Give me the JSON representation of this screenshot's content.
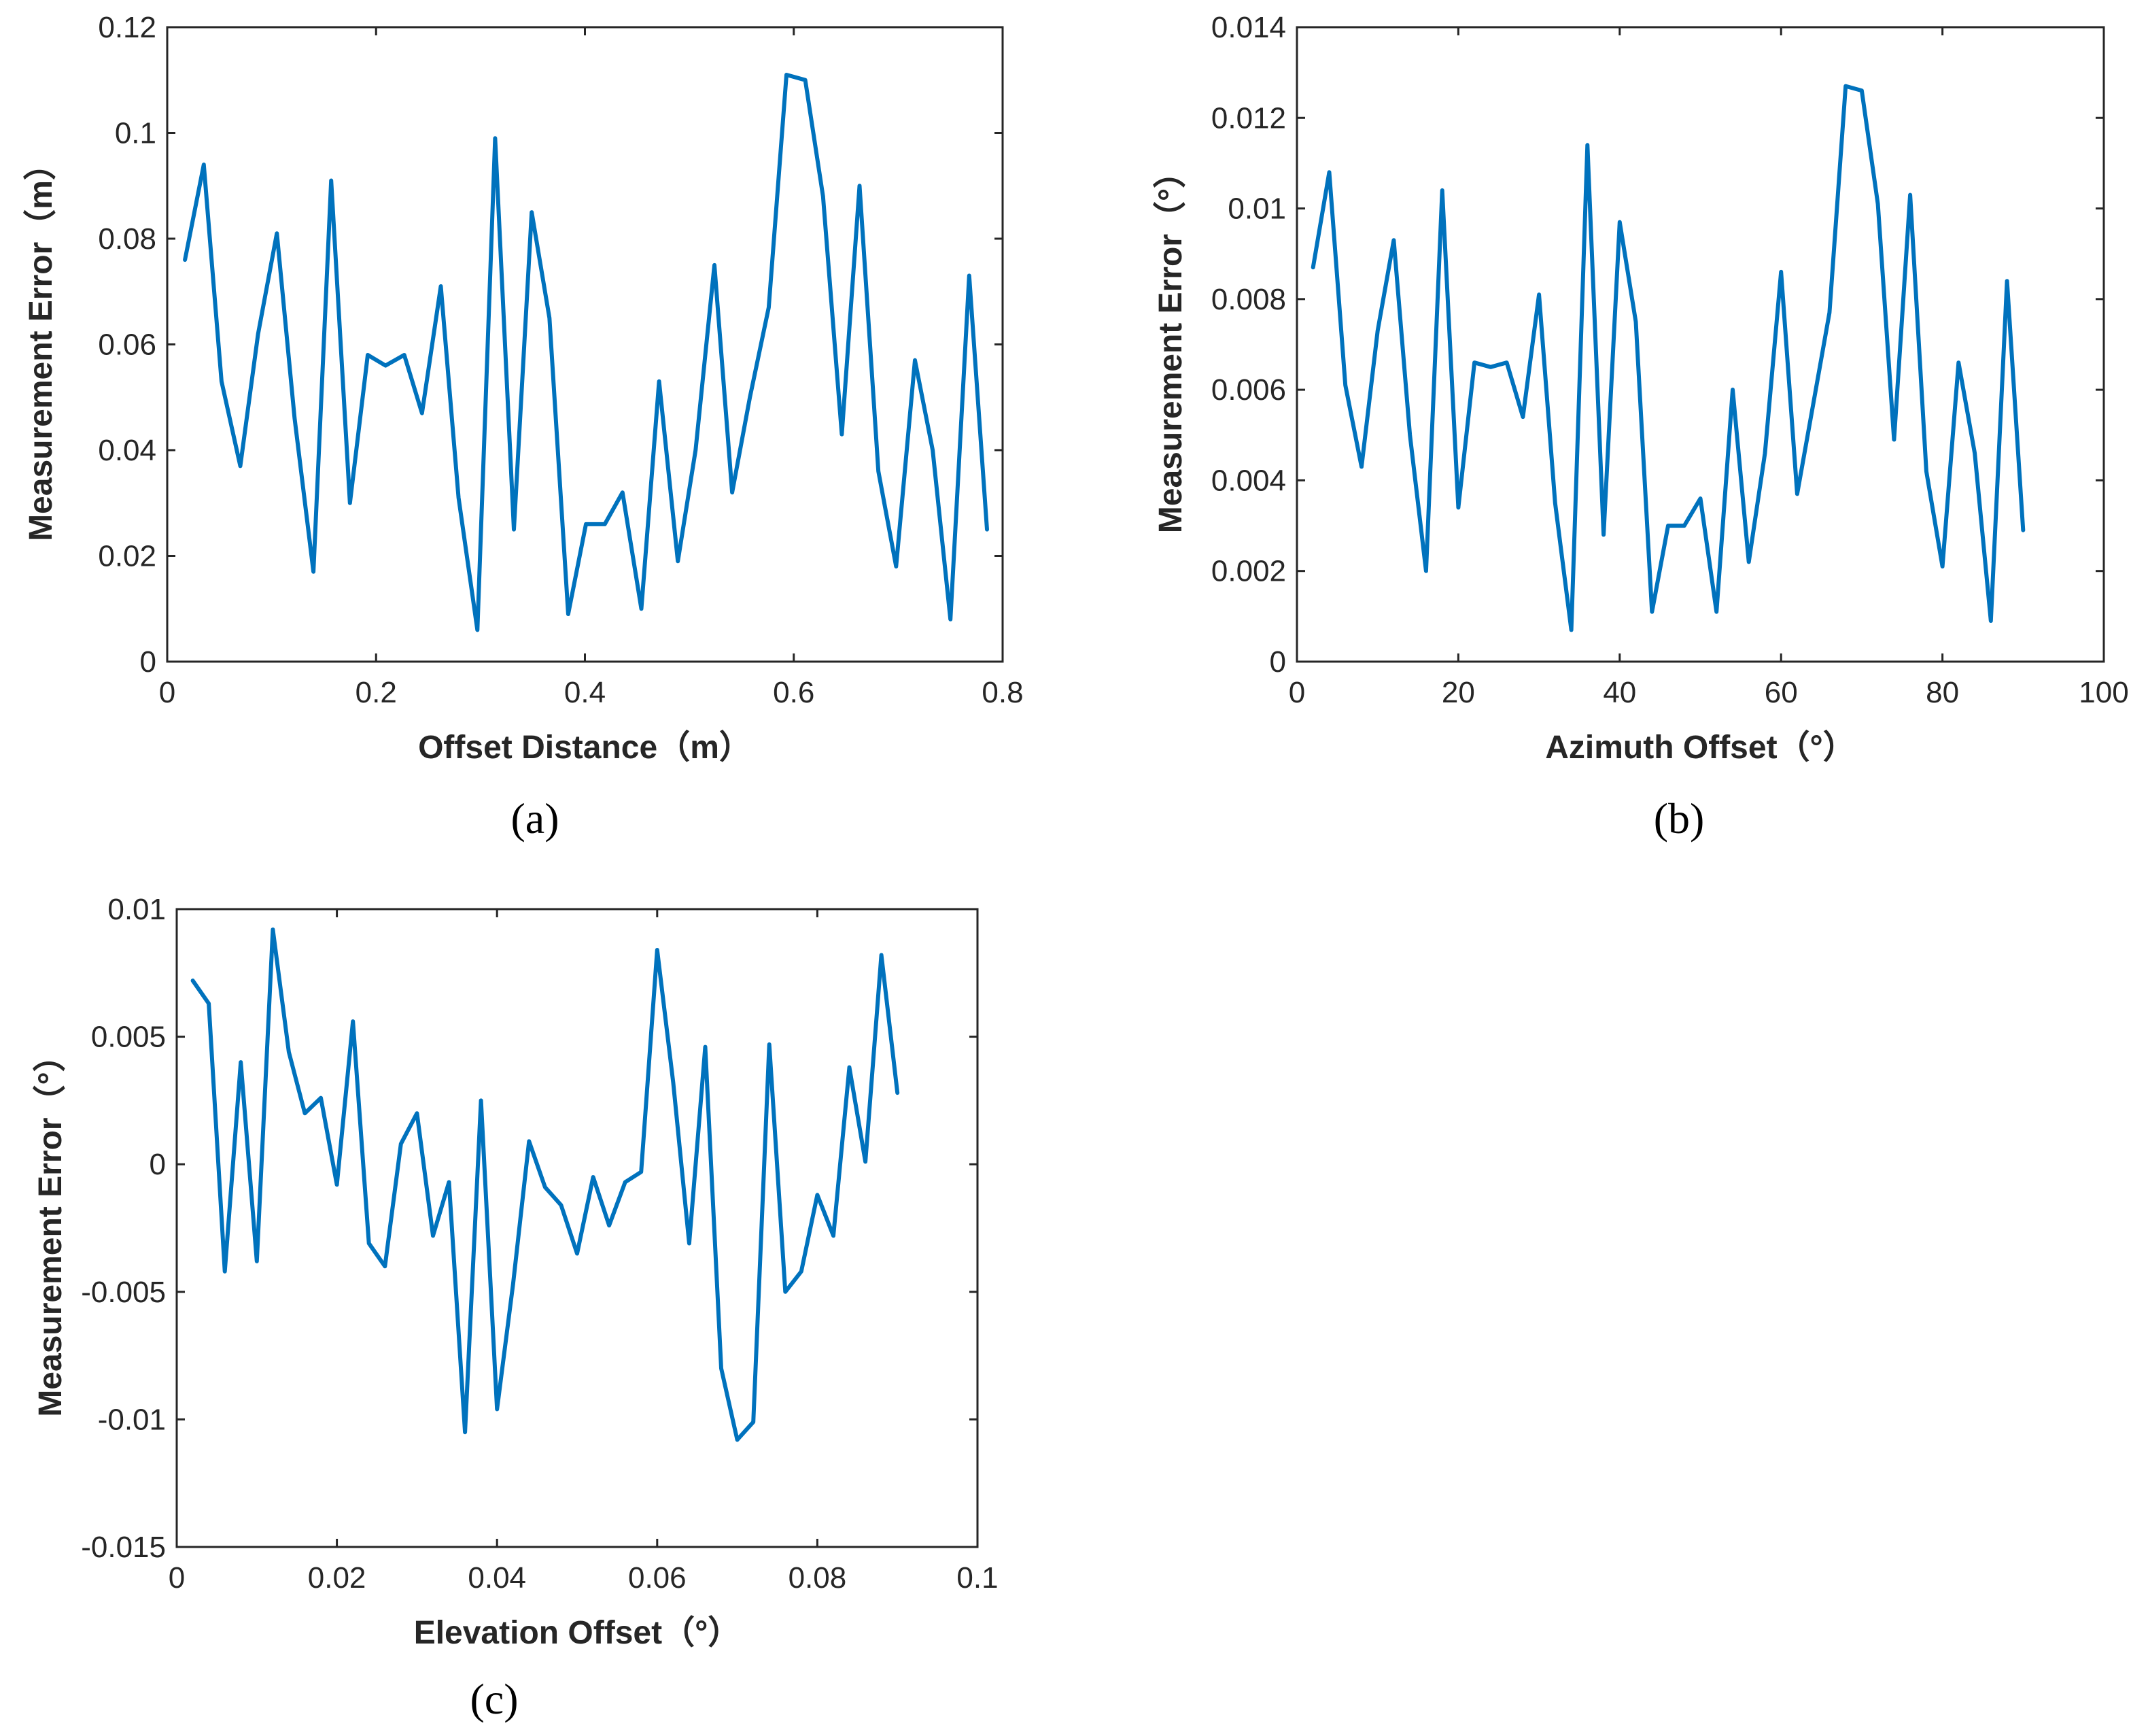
{
  "colors": {
    "series": "#0072BD",
    "axis": "#262626"
  },
  "chart_data": [
    {
      "type": "line",
      "panel": "(a)",
      "xlabel": "Offset Distance（m）",
      "ylabel": "Measurement Error（m）",
      "xlim": [
        0,
        0.8
      ],
      "ylim": [
        0,
        0.12
      ],
      "xticks": [
        0,
        0.2,
        0.4,
        0.6,
        0.8
      ],
      "xtick_labels": [
        "0",
        "0.2",
        "0.4",
        "0.6",
        "0.8"
      ],
      "yticks": [
        0,
        0.02,
        0.04,
        0.06,
        0.08,
        0.1,
        0.12
      ],
      "ytick_labels": [
        "0",
        "0.02",
        "0.04",
        "0.06",
        "0.08",
        "0.1",
        "0.12"
      ],
      "x": [
        0.017,
        0.035,
        0.052,
        0.07,
        0.087,
        0.105,
        0.122,
        0.14,
        0.157,
        0.175,
        0.192,
        0.209,
        0.227,
        0.244,
        0.262,
        0.279,
        0.297,
        0.314,
        0.332,
        0.349,
        0.366,
        0.384,
        0.401,
        0.419,
        0.436,
        0.454,
        0.471,
        0.489,
        0.506,
        0.524,
        0.541,
        0.558,
        0.576,
        0.593,
        0.611,
        0.628,
        0.646,
        0.663,
        0.681,
        0.698,
        0.716,
        0.733,
        0.75,
        0.768,
        0.785
      ],
      "y": [
        0.076,
        0.094,
        0.053,
        0.037,
        0.062,
        0.081,
        0.046,
        0.017,
        0.091,
        0.03,
        0.058,
        0.056,
        0.058,
        0.047,
        0.071,
        0.031,
        0.006,
        0.099,
        0.025,
        0.085,
        0.065,
        0.009,
        0.026,
        0.026,
        0.032,
        0.01,
        0.053,
        0.019,
        0.04,
        0.075,
        0.032,
        0.05,
        0.067,
        0.111,
        0.11,
        0.088,
        0.043,
        0.09,
        0.036,
        0.018,
        0.057,
        0.04,
        0.008,
        0.073,
        0.025
      ]
    },
    {
      "type": "line",
      "panel": "(b)",
      "xlabel": "Azimuth Offset（°）",
      "ylabel": "Measurement Error（°）",
      "xlim": [
        0,
        100
      ],
      "ylim": [
        0,
        0.014
      ],
      "xticks": [
        0,
        20,
        40,
        60,
        80,
        100
      ],
      "xtick_labels": [
        "0",
        "20",
        "40",
        "60",
        "80",
        "100"
      ],
      "yticks": [
        0,
        0.002,
        0.004,
        0.006,
        0.008,
        0.01,
        0.012,
        0.014
      ],
      "ytick_labels": [
        "0",
        "0.002",
        "0.004",
        "0.006",
        "0.008",
        "0.01",
        "0.012",
        "0.014"
      ],
      "x": [
        2,
        4,
        6,
        8,
        10,
        12,
        14,
        16,
        18,
        20,
        22,
        24,
        26,
        28,
        30,
        32,
        34,
        36,
        38,
        40,
        42,
        44,
        46,
        48,
        50,
        52,
        54,
        56,
        58,
        60,
        62,
        64,
        66,
        68,
        70,
        72,
        74,
        76,
        78,
        80,
        82,
        84,
        86,
        88,
        90
      ],
      "y": [
        0.0087,
        0.0108,
        0.0061,
        0.0043,
        0.0073,
        0.0093,
        0.005,
        0.002,
        0.0104,
        0.0034,
        0.0066,
        0.0065,
        0.0066,
        0.0054,
        0.0081,
        0.0035,
        0.0007,
        0.0114,
        0.0028,
        0.0097,
        0.0075,
        0.0011,
        0.003,
        0.003,
        0.0036,
        0.0011,
        0.006,
        0.0022,
        0.0046,
        0.0086,
        0.0037,
        0.0057,
        0.0077,
        0.0127,
        0.0126,
        0.0101,
        0.0049,
        0.0103,
        0.0042,
        0.0021,
        0.0066,
        0.0046,
        0.0009,
        0.0084,
        0.0029
      ]
    },
    {
      "type": "line",
      "panel": "(c)",
      "xlabel": "Elevation Offset（°）",
      "ylabel": "Measurement Error（°）",
      "xlim": [
        0,
        0.1
      ],
      "ylim": [
        -0.015,
        0.01
      ],
      "xticks": [
        0,
        0.02,
        0.04,
        0.06,
        0.08,
        0.1
      ],
      "xtick_labels": [
        "0",
        "0.02",
        "0.04",
        "0.06",
        "0.08",
        "0.1"
      ],
      "yticks": [
        -0.015,
        -0.01,
        -0.005,
        0,
        0.005,
        0.01
      ],
      "ytick_labels": [
        "-0.015",
        "-0.01",
        "-0.005",
        "0",
        "0.005",
        "0.01"
      ],
      "x": [
        0.002,
        0.004,
        0.006,
        0.008,
        0.01,
        0.012,
        0.014,
        0.016,
        0.018,
        0.02,
        0.022,
        0.024,
        0.026,
        0.028,
        0.03,
        0.032,
        0.034,
        0.036,
        0.038,
        0.04,
        0.042,
        0.044,
        0.046,
        0.048,
        0.05,
        0.052,
        0.054,
        0.056,
        0.058,
        0.06,
        0.062,
        0.064,
        0.066,
        0.068,
        0.07,
        0.072,
        0.074,
        0.076,
        0.078,
        0.08,
        0.082,
        0.084,
        0.086,
        0.088,
        0.09
      ],
      "y": [
        0.0072,
        0.0063,
        -0.0042,
        0.004,
        -0.0038,
        0.0092,
        0.0044,
        0.002,
        0.0026,
        -0.0008,
        0.0056,
        -0.0031,
        -0.004,
        0.0008,
        0.002,
        -0.0028,
        -0.0007,
        -0.0105,
        0.0025,
        -0.0096,
        -0.0047,
        0.0009,
        -0.0009,
        -0.0016,
        -0.0035,
        -0.0005,
        -0.0024,
        -0.0007,
        -0.0003,
        0.0084,
        0.0032,
        -0.0031,
        0.0046,
        -0.008,
        -0.0108,
        -0.0101,
        0.0047,
        -0.005,
        -0.0042,
        -0.0012,
        -0.0028,
        0.0038,
        0.0001,
        0.0082,
        0.0028
      ]
    }
  ]
}
